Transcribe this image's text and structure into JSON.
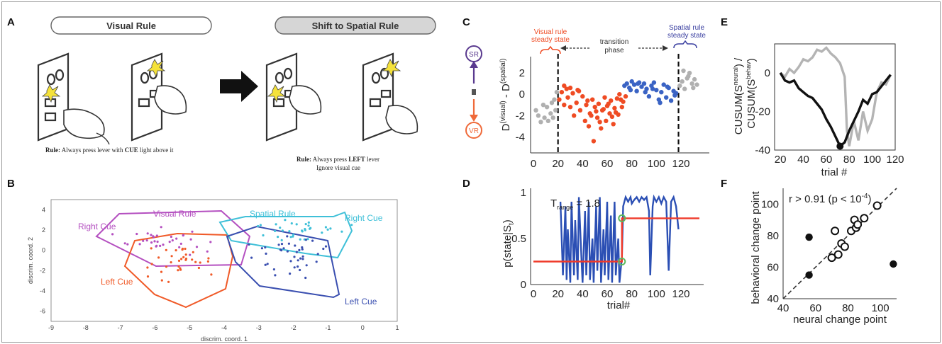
{
  "labels": {
    "a": "A",
    "b": "B",
    "c": "C",
    "d": "D",
    "e": "E",
    "f": "F"
  },
  "panel_a": {
    "visual_rule_title": "Visual Rule",
    "spatial_rule_title": "Shift to Spatial Rule",
    "visual_caption_bold": "Rule:",
    "visual_caption_1": " Always press lever with ",
    "visual_caption_cue": "CUE",
    "visual_caption_2": " light above it",
    "spatial_caption_bold": "Rule:",
    "spatial_caption_1": " Always press ",
    "spatial_caption_left": "LEFT",
    "spatial_caption_2": " lever",
    "spatial_caption_line2": "Ignore visual cue"
  },
  "panel_b": {
    "xlabel": "discrim. coord. 1",
    "ylabel": "discrim. coord. 2",
    "xticks": [
      "-9",
      "-8",
      "-7",
      "-6",
      "-5",
      "-4",
      "-3",
      "-2",
      "-1",
      "0",
      "1"
    ],
    "yticks": [
      "4",
      "2",
      "0",
      "-2",
      "-4",
      "-6"
    ],
    "region_labels": [
      "Visual Rule",
      "Spatial Rule",
      "Right Cue",
      "Left Cue",
      "Right Cue",
      "Left Cue"
    ],
    "colors": {
      "visual_right": "#b44fc0",
      "visual_left": "#f05a28",
      "spatial_right": "#3fc0d8",
      "spatial_left": "#3a4fb0"
    }
  },
  "panel_c": {
    "xticks": [
      "0",
      "20",
      "40",
      "60",
      "80",
      "100",
      "120"
    ],
    "yticks": [
      "2",
      "0",
      "-2",
      "-4"
    ],
    "ylabel_main": "D",
    "ylabel_sup1": "(visual)",
    "ylabel_mid": " - D",
    "ylabel_sup2": "(spatial)",
    "visual_label_1": "Visual rule",
    "visual_label_2": "steady state",
    "transition_label_1": "transition",
    "transition_label_2": "phase",
    "spatial_label_1": "Spatial rule",
    "spatial_label_2": "steady state",
    "sr_label": "SR",
    "vr_label": "VR",
    "colors": {
      "grey": "#b0b0b0",
      "red": "#ef4b23",
      "blue": "#3a63c4",
      "sr": "#5a3a8f",
      "vr": "#ef6a3a"
    }
  },
  "panel_d": {
    "xlabel": "trial#",
    "xticks": [
      "0",
      "20",
      "40",
      "60",
      "80",
      "100",
      "120"
    ],
    "yticks": [
      "1",
      "0.5",
      "0"
    ],
    "ylabel": "p(state|S",
    "ylabel_sub": "t",
    "ylabel_end": ")",
    "t_label": "T",
    "t_sub": "range",
    "t_value": "= 1.8"
  },
  "panel_e": {
    "xlabel": "trial #",
    "xticks": [
      "20",
      "40",
      "60",
      "80",
      "100",
      "120"
    ],
    "yticks": [
      "0",
      "-20",
      "-40"
    ],
    "ylabel_black": "CUSUM(S",
    "ylabel_black_sup": "neural",
    "ylabel_black_end": ") /",
    "ylabel_grey": "CUSUM(S",
    "ylabel_grey_sup": "behav",
    "ylabel_grey_end": ")"
  },
  "panel_f": {
    "xlabel": "neural change point",
    "ylabel": "behavioral change point",
    "xticks": [
      "40",
      "60",
      "80",
      "100"
    ],
    "yticks": [
      "40",
      "60",
      "80",
      "100"
    ],
    "annotation_1": "r > 0.91 (p < 10",
    "annotation_sup": "-4",
    "annotation_2": ")"
  },
  "chart_data": [
    {
      "panel": "C",
      "type": "scatter",
      "xlim": [
        0,
        135
      ],
      "ylim": [
        -5.5,
        3
      ],
      "change_points": [
        20,
        118
      ],
      "series": [
        {
          "values_x": [
            2,
            4,
            6,
            8,
            9,
            11,
            12,
            14,
            15,
            16,
            17,
            18,
            19
          ],
          "values_y": [
            -1.5,
            -2.0,
            -2.6,
            -1.0,
            -2.2,
            -1.2,
            -2.5,
            -1.8,
            -0.8,
            -2.2,
            -0.5,
            -1.5,
            0.2
          ]
        },
        {
          "values_x": [
            21,
            23,
            25,
            27,
            28,
            30,
            32,
            33,
            35,
            37,
            38,
            40,
            42,
            43,
            45,
            46,
            48,
            49,
            50,
            52,
            53,
            55,
            56,
            58,
            59,
            60,
            62,
            63,
            65,
            66,
            68,
            69,
            70,
            72,
            73,
            75,
            25,
            30,
            36,
            44,
            47,
            51,
            54,
            57,
            61,
            64,
            67,
            71
          ],
          "values_y": [
            -0.5,
            0.2,
            -1.0,
            0.5,
            -0.3,
            -1.2,
            0.1,
            -2.0,
            -0.8,
            0.3,
            -1.5,
            -0.2,
            -2.5,
            -1.0,
            -3.0,
            -1.8,
            -0.5,
            -4.4,
            -1.2,
            -2.2,
            -0.9,
            -3.2,
            -1.5,
            -0.3,
            -2.5,
            -1.1,
            -1.8,
            -0.6,
            -2.8,
            -1.3,
            -0.4,
            -1.9,
            0.0,
            -1.2,
            -0.7,
            -0.2,
            0.8,
            0.6,
            0.4,
            -0.6,
            -2.0,
            -1.6,
            -2.6,
            -1.4,
            -0.9,
            -2.1,
            -1.7,
            -0.5
          ]
        },
        {
          "values_x": [
            74,
            76,
            78,
            80,
            82,
            84,
            86,
            88,
            90,
            92,
            94,
            96,
            98,
            100,
            102,
            104,
            106,
            108,
            110,
            112,
            114,
            116,
            79,
            85,
            91,
            97,
            103,
            109,
            115
          ],
          "values_y": [
            0.8,
            1.0,
            0.6,
            1.2,
            0.9,
            0.3,
            1.1,
            0.7,
            1.0,
            0.5,
            -0.2,
            0.8,
            1.1,
            0.4,
            -0.5,
            0.2,
            0.9,
            -0.3,
            0.6,
            -0.6,
            0.3,
            0.1,
            0.4,
            1.0,
            0.2,
            0.5,
            -0.8,
            0.7,
            -0.1
          ]
        },
        {
          "values_x": [
            119,
            121,
            123,
            125,
            127,
            129,
            131,
            133,
            122,
            126,
            130
          ],
          "values_y": [
            0.8,
            1.2,
            0.5,
            1.5,
            2.0,
            1.0,
            1.4,
            0.9,
            2.2,
            1.7,
            0.6
          ]
        }
      ]
    },
    {
      "panel": "D",
      "type": "line",
      "xlim": [
        0,
        135
      ],
      "ylim": [
        0,
        1
      ],
      "trace_x": [
        22,
        24,
        26,
        27,
        28,
        30,
        31,
        33,
        34,
        36,
        37,
        39,
        40,
        42,
        43,
        45,
        46,
        48,
        49,
        51,
        52,
        54,
        55,
        57,
        58,
        60,
        61,
        63,
        64,
        66,
        67,
        69,
        70,
        72,
        73,
        75,
        77,
        79,
        80,
        82,
        84,
        86,
        88,
        90,
        92,
        94,
        95,
        97,
        98,
        100,
        102,
        104,
        106,
        108,
        110,
        112,
        114,
        116,
        118
      ],
      "trace_y": [
        0.9,
        0.1,
        0.85,
        0.05,
        0.6,
        0.02,
        0.9,
        0.1,
        0.7,
        0.05,
        0.95,
        0.3,
        0.02,
        0.8,
        0.1,
        0.9,
        0.05,
        0.5,
        0.02,
        0.85,
        0.15,
        0.95,
        0.02,
        0.6,
        0.1,
        0.9,
        0.05,
        0.75,
        0.02,
        0.9,
        0.1,
        0.5,
        0.02,
        0.3,
        0.85,
        0.95,
        0.9,
        0.95,
        0.88,
        0.92,
        0.95,
        0.9,
        0.95,
        0.92,
        0.95,
        0.8,
        0.1,
        0.85,
        0.95,
        0.9,
        0.95,
        0.88,
        0.95,
        0.9,
        0.15,
        0.9,
        0.95,
        0.85,
        0.6
      ],
      "fit_low": 0.25,
      "fit_high": 0.72,
      "fit_break": 72,
      "fit_end": 135
    },
    {
      "panel": "E",
      "type": "line",
      "xlim": [
        15,
        120
      ],
      "ylim": [
        -40,
        15
      ],
      "series": [
        {
          "values_x": [
            20,
            24,
            28,
            32,
            36,
            40,
            44,
            48,
            52,
            56,
            60,
            64,
            68,
            72,
            76,
            80,
            84,
            88,
            92,
            96,
            100,
            104,
            108,
            112,
            116
          ],
          "values_y": [
            0,
            -4,
            -5,
            -4,
            -8,
            -10,
            -12,
            -13,
            -16,
            -19,
            -24,
            -28,
            -33,
            -38,
            -36,
            -30,
            -25,
            -20,
            -14,
            -16,
            -11,
            -10,
            -7,
            -4,
            -1
          ]
        },
        {
          "values_x": [
            20,
            24,
            28,
            32,
            36,
            40,
            44,
            48,
            52,
            56,
            60,
            64,
            68,
            72,
            76,
            78,
            80,
            84,
            88,
            92,
            96,
            100,
            104,
            108,
            112,
            116
          ],
          "values_y": [
            0,
            -2,
            2,
            0,
            3,
            7,
            6,
            8,
            12,
            11,
            13,
            10,
            8,
            5,
            -2,
            -30,
            -38,
            -25,
            -35,
            -20,
            -30,
            -24,
            -10,
            -5,
            -6,
            -1
          ]
        }
      ]
    },
    {
      "panel": "F",
      "type": "scatter",
      "xlim": [
        40,
        110
      ],
      "ylim": [
        40,
        110
      ],
      "series": [
        {
          "values_x": [
            56,
            56,
            108
          ],
          "values_y": [
            79,
            55,
            62
          ]
        },
        {
          "values_x": [
            70,
            72,
            74,
            76,
            78,
            82,
            84,
            85,
            86,
            90,
            98
          ],
          "values_y": [
            66,
            83,
            68,
            75,
            73,
            83,
            90,
            85,
            87,
            91,
            99
          ]
        }
      ]
    }
  ]
}
